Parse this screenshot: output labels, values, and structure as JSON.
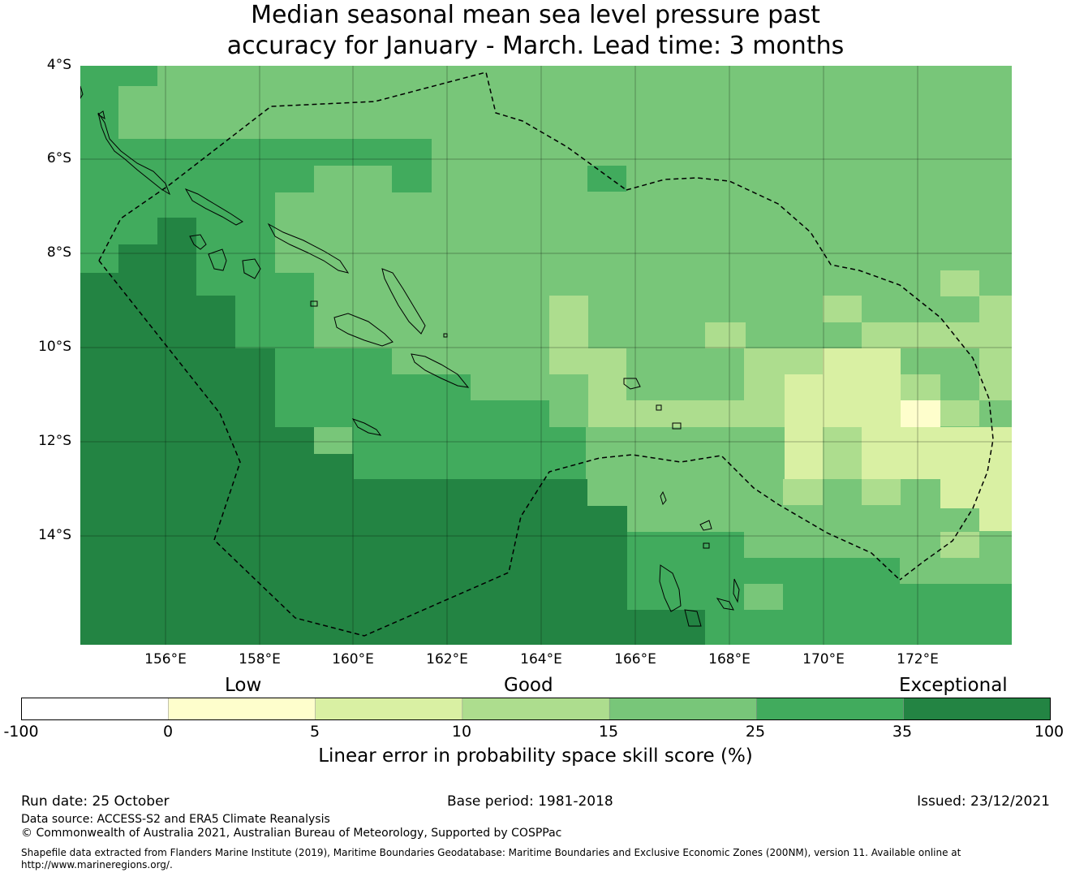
{
  "title": {
    "line1": "Median seasonal mean sea level pressure past",
    "line2": "accuracy for January - March. Lead time: 3 months"
  },
  "map": {
    "lat_labels": [
      "4°S",
      "6°S",
      "8°S",
      "10°S",
      "12°S",
      "14°S"
    ],
    "lon_labels": [
      "156°E",
      "158°E",
      "160°E",
      "162°E",
      "164°E",
      "166°E",
      "168°E",
      "170°E",
      "172°E"
    ],
    "boundary_style": "dashed",
    "region_colors": {
      "band_0_5": "#fefecc",
      "band_5_10": "#d9f0a3",
      "band_10_15": "#addd8e",
      "band_15_25": "#78c679",
      "band_25_35": "#41ab5d",
      "band_35_100": "#238443"
    }
  },
  "colorbar": {
    "category_labels": [
      "Low",
      "Good",
      "Exceptional"
    ],
    "ticks": [
      "-100",
      "0",
      "5",
      "10",
      "15",
      "25",
      "35",
      "100"
    ],
    "colors": [
      "#ffffff",
      "#fefecc",
      "#d9f0a3",
      "#addd8e",
      "#78c679",
      "#41ab5d",
      "#238443"
    ],
    "title": "Linear error in probability space skill score (%)"
  },
  "footer": {
    "run_date": "Run date: 25 October",
    "base_period": "Base period: 1981-2018",
    "issued": "Issued: 23/12/2021",
    "data_source": "Data source: ACCESS-S2 and ERA5 Climate Reanalysis",
    "copyright": "© Commonwealth of Australia 2021, Australian Bureau of Meteorology, Supported by COSPPac",
    "shapefile_line1": "Shapefile data extracted from Flanders Marine Institute (2019), Maritime Boundaries Geodatabase: Maritime Boundaries and Exclusive Economic Zones (200NM), version 11. Available online at",
    "shapefile_line2": "http://www.marineregions.org/."
  }
}
